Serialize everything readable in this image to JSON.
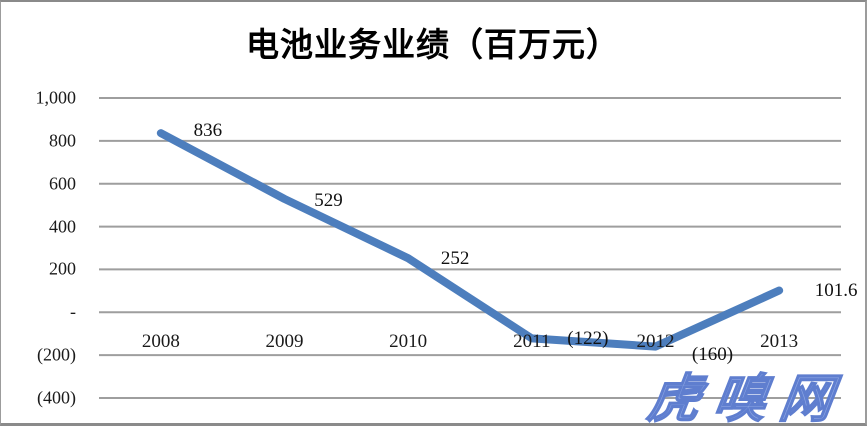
{
  "chart_data": {
    "type": "line",
    "title": "电池业务业绩（百万元）",
    "categories": [
      "2008",
      "2009",
      "2010",
      "2011",
      "2012",
      "2013"
    ],
    "series": [
      {
        "name": "电池业务业绩",
        "values": [
          836,
          529,
          252,
          -122,
          -160,
          101.6
        ]
      }
    ],
    "point_labels": [
      "836",
      "529",
      "252",
      "(122)",
      "(160)",
      "101.6"
    ],
    "y_ticks": [
      {
        "label": "1,000",
        "value": 1000
      },
      {
        "label": "800",
        "value": 800
      },
      {
        "label": "600",
        "value": 600
      },
      {
        "label": "400",
        "value": 400
      },
      {
        "label": "200",
        "value": 200
      },
      {
        "label": "-",
        "value": 0
      },
      {
        "label": "(200)",
        "value": -200
      },
      {
        "label": "(400)",
        "value": -400
      }
    ],
    "ylim": [
      -400,
      1000
    ],
    "xlabel": "",
    "ylabel": "",
    "grid": "horizontal",
    "legend": "none",
    "colors": {
      "line": "#4d7ebd",
      "gridline": "#9e9e9e",
      "label": "#1a1a1a"
    }
  },
  "watermark": {
    "text": "虎嗅网",
    "color": "#8ea7e4",
    "outline_color": "#5f7ecf"
  }
}
